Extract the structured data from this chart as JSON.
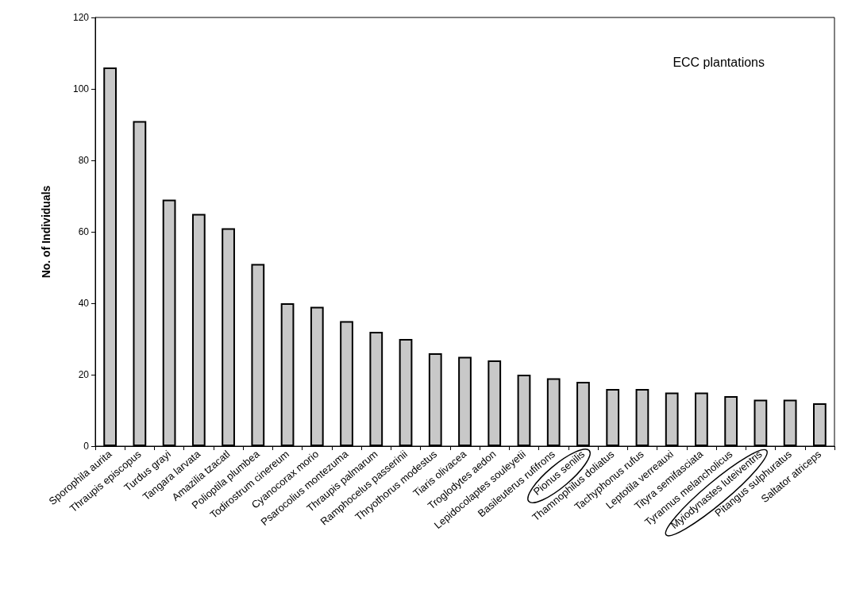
{
  "chart_data": {
    "type": "bar",
    "ylabel": "No. of Individuals",
    "annotations": [
      "ECC plantations"
    ],
    "categories": [
      "Sporophila aurita",
      "Thraupis episcopus",
      "Turdus grayi",
      "Tangara larvata",
      "Amazilia tzacatl",
      "Polioptila plumbea",
      "Todirostrum cinereum",
      "Cyanocorax morio",
      "Psarocolius montezuma",
      "Thraupis palmarum",
      "Ramphocelus passerinii",
      "Thryothorus modestus",
      "Tiaris olivacea",
      "Troglodytes aedon",
      "Lepidocolaptes souleyetii",
      "Basileuterus rufifrons",
      "Pionus senilis",
      "Thamnophilus doliatus",
      "Tachyphonus rufus",
      "Leptotila verreauxi",
      "Tityra semifasciata",
      "Tyrannus melancholicus",
      "Myiodynastes luteiventris",
      "Pitangus sulphuratus",
      "Saltator atriceps"
    ],
    "values": [
      106,
      91,
      69,
      65,
      61,
      51,
      40,
      39,
      35,
      32,
      30,
      26,
      25,
      24,
      20,
      19,
      18,
      16,
      16,
      15,
      15,
      14,
      13,
      13,
      12
    ],
    "color": "#c8c8c8",
    "ylim": [
      0,
      120
    ],
    "yticks": [
      0,
      20,
      40,
      60,
      80,
      100,
      120
    ],
    "grid": false
  }
}
